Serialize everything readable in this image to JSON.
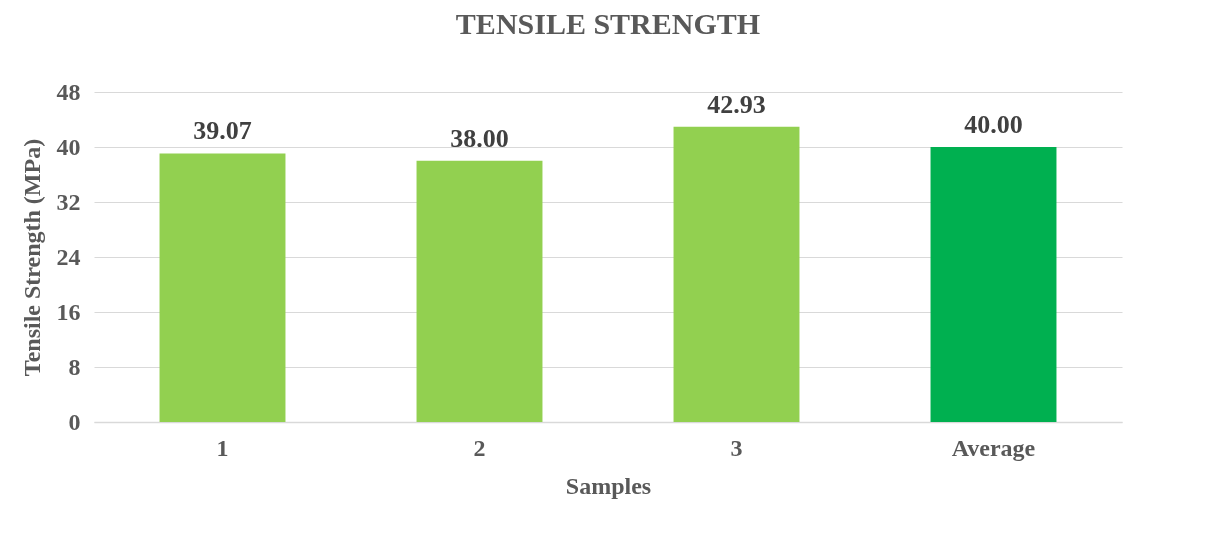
{
  "chart_data": {
    "type": "bar",
    "title": "TENSILE STRENGTH",
    "xlabel": "Samples",
    "ylabel": "Tensile Strength (MPa)",
    "categories": [
      "1",
      "2",
      "3",
      "Average"
    ],
    "values": [
      39.07,
      38.0,
      42.93,
      40.0
    ],
    "colors": [
      "#92d050",
      "#92d050",
      "#92d050",
      "#00b050"
    ],
    "value_labels": [
      "39.07",
      "38.00",
      "42.93",
      "40.00"
    ],
    "ylim": [
      0,
      48
    ],
    "yticks": [
      0,
      8,
      16,
      24,
      32,
      40,
      48
    ],
    "grid": "y",
    "legend": false
  }
}
